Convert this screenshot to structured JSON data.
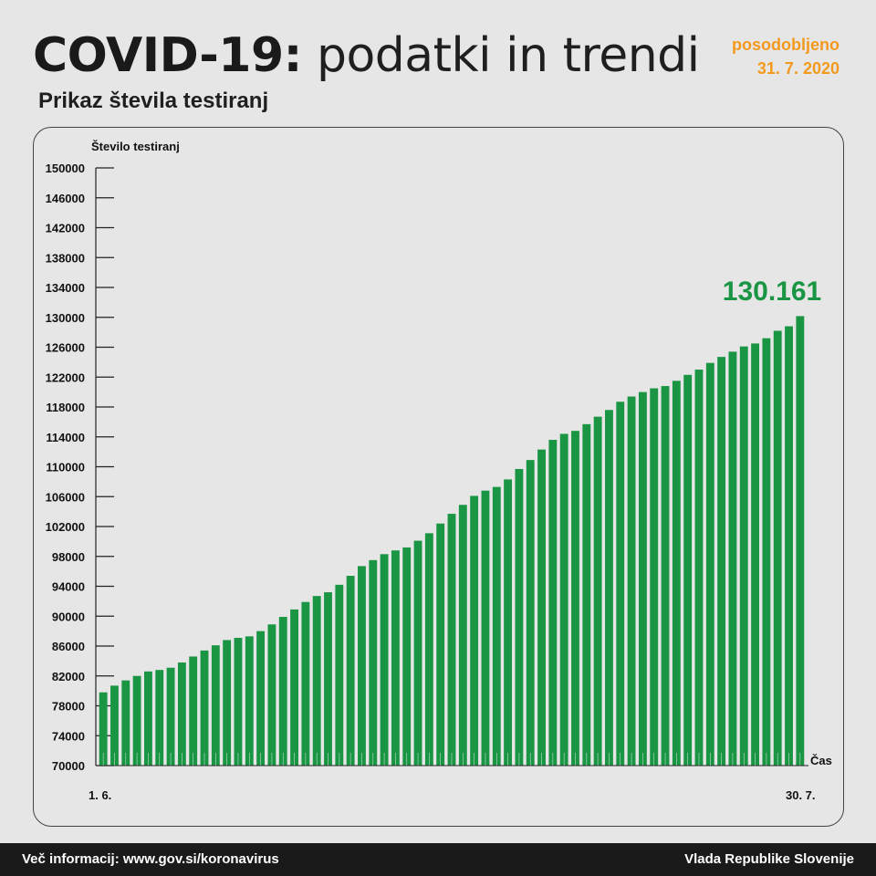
{
  "header": {
    "title_bold": "COVID-19:",
    "title_rest": "podatki in trendi",
    "updated_label": "posodobljeno",
    "updated_date": "31. 7. 2020",
    "subtitle": "Prikaz števila testiranj"
  },
  "footer": {
    "left": "Več informacij: www.gov.si/koronavirus",
    "right": "Vlada Republike Slovenije"
  },
  "colors": {
    "bar": "#1a9544",
    "highlight": "#1a9544",
    "accent_orange": "#f39a1e",
    "background": "#e6e6e6",
    "footer": "#1a1a1a"
  },
  "chart_data": {
    "type": "bar",
    "title": "Prikaz števila testiranj",
    "ylabel": "Število testiranj",
    "xlabel": "Čas",
    "ylim": [
      70000,
      150000
    ],
    "yticks": [
      70000,
      74000,
      78000,
      82000,
      86000,
      90000,
      94000,
      98000,
      102000,
      106000,
      110000,
      114000,
      118000,
      122000,
      126000,
      130000,
      134000,
      138000,
      142000,
      146000,
      150000
    ],
    "x_start_label": "1. 6.",
    "x_end_label": "30. 7.",
    "last_value_label": "130.161",
    "grid": false,
    "values": [
      79800,
      80700,
      81400,
      82000,
      82600,
      82800,
      83100,
      83800,
      84600,
      85400,
      86100,
      86800,
      87100,
      87300,
      88000,
      88900,
      89900,
      90900,
      91900,
      92700,
      93200,
      94200,
      95400,
      96700,
      97500,
      98300,
      98800,
      99200,
      100100,
      101100,
      102400,
      103700,
      104900,
      106100,
      106800,
      107300,
      108300,
      109700,
      110900,
      112300,
      113600,
      114400,
      114800,
      115700,
      116700,
      117600,
      118700,
      119400,
      120000,
      120500,
      120800,
      121500,
      122300,
      123000,
      123900,
      124700,
      125400,
      126100,
      126500,
      127200,
      128200,
      128800,
      130161
    ]
  }
}
